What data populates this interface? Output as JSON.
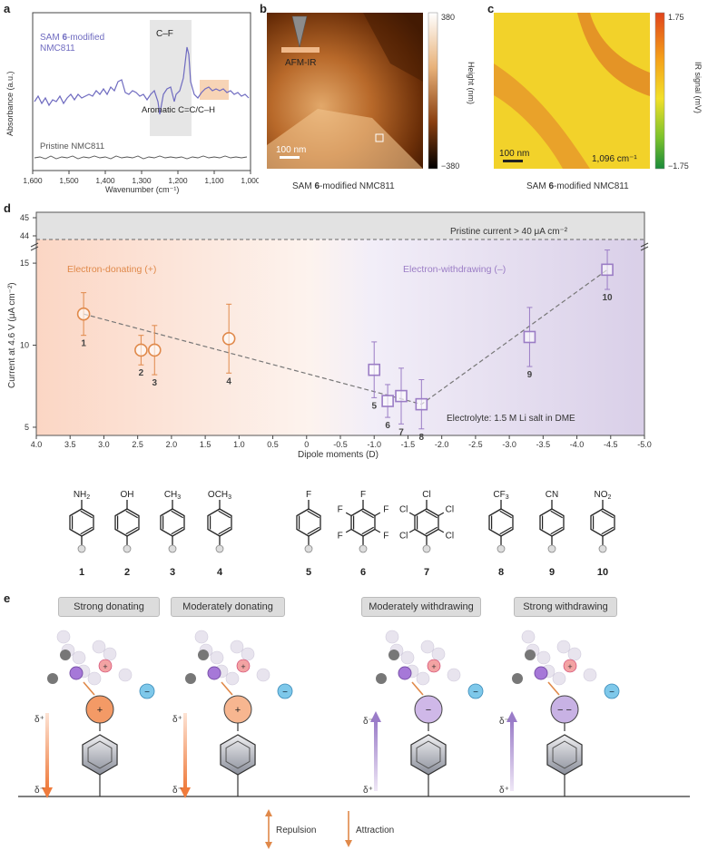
{
  "labels": {
    "a": "a",
    "b": "b",
    "c": "c",
    "d": "d",
    "e": "e"
  },
  "panel_a": {
    "ylabel": "Absorbance (a.u.)",
    "xlabel": "Wavenumber (cm⁻¹)",
    "xticks": [
      "1,600",
      "1,500",
      "1,400",
      "1,300",
      "1,200",
      "1,100",
      "1,000"
    ],
    "sam_label_1": "SAM ",
    "sam_label_bold": "6",
    "sam_label_2": "-modified",
    "sam_label_3": "NMC811",
    "cf_label": "C–F",
    "aromatic_label": "Aromatic C=C/C–H",
    "pristine_label": "Pristine NMC811",
    "colors": {
      "sam": "#6f6bc0",
      "pristine": "#555555",
      "cf_box": "#e4e4e4",
      "aro_box": "#f6d3b5"
    }
  },
  "panel_b": {
    "afm_label": "AFM-IR",
    "scale": "100 nm",
    "cbar_top": "380",
    "cbar_bottom": "−380",
    "cbar_label": "Height (nm)",
    "caption_1": "SAM ",
    "caption_bold": "6",
    "caption_2": "-modified NMC811"
  },
  "panel_c": {
    "scale": "100 nm",
    "wavenumber": "1,096 cm⁻¹",
    "cbar_top": "1.75",
    "cbar_bottom": "−1.75",
    "cbar_label": "IR signal (mV)",
    "caption_1": "SAM ",
    "caption_bold": "6",
    "caption_2": "-modified NMC811"
  },
  "chart_data": {
    "type": "scatter",
    "xlabel": "Dipole moments (D)",
    "ylabel": "Current at 4.6 V (μA cm⁻²)",
    "xlim": [
      4.0,
      -5.0
    ],
    "xticks": [
      "4.0",
      "3.5",
      "3.0",
      "2.5",
      "2.0",
      "1.5",
      "1.0",
      "0.5",
      "0",
      "-0.5",
      "-1.0",
      "-1.5",
      "-2.0",
      "-2.5",
      "-3.0",
      "-3.5",
      "-4.0",
      "-4.5",
      "-5.0"
    ],
    "yticks_lower": [
      "5",
      "10",
      "15"
    ],
    "yticks_upper": [
      "44",
      "45"
    ],
    "pristine_text": "Pristine current > 40 μA cm⁻²",
    "donating_text": "Electron-donating (+)",
    "withdrawing_text": "Electron-withdrawing (–)",
    "electrolyte_text": "Electrolyte: 1.5 M Li salt in DME",
    "points": [
      {
        "id": "1",
        "x": 3.3,
        "y": 11.9,
        "err": 1.3,
        "marker": "circle",
        "color": "#e0894a"
      },
      {
        "id": "2",
        "x": 2.45,
        "y": 9.7,
        "err": 0.9,
        "marker": "circle",
        "color": "#e0894a"
      },
      {
        "id": "3",
        "x": 2.25,
        "y": 9.7,
        "err": 1.5,
        "marker": "circle",
        "color": "#e0894a"
      },
      {
        "id": "4",
        "x": 1.15,
        "y": 10.4,
        "err": 2.1,
        "marker": "circle",
        "color": "#e0894a"
      },
      {
        "id": "5",
        "x": -1.0,
        "y": 8.5,
        "err": 1.7,
        "marker": "square",
        "color": "#9b7dc5"
      },
      {
        "id": "6",
        "x": -1.2,
        "y": 6.6,
        "err": 1.0,
        "marker": "square",
        "color": "#9b7dc5"
      },
      {
        "id": "7",
        "x": -1.4,
        "y": 6.9,
        "err": 1.7,
        "marker": "square",
        "color": "#9b7dc5"
      },
      {
        "id": "8",
        "x": -1.7,
        "y": 6.4,
        "err": 1.5,
        "marker": "square",
        "color": "#9b7dc5"
      },
      {
        "id": "9",
        "x": -3.3,
        "y": 10.5,
        "err": 1.8,
        "marker": "square",
        "color": "#9b7dc5"
      },
      {
        "id": "10",
        "x": -4.45,
        "y": 14.6,
        "err": 1.2,
        "marker": "square",
        "color": "#9b7dc5"
      }
    ],
    "trend": [
      [
        3.3,
        11.9
      ],
      [
        -1.7,
        6.4
      ],
      [
        -4.45,
        14.6
      ]
    ]
  },
  "molecules": [
    {
      "sub": "NH",
      "sub2": "2",
      "num": "1"
    },
    {
      "sub": "OH",
      "sub2": "",
      "num": "2"
    },
    {
      "sub": "CH",
      "sub2": "3",
      "num": "3"
    },
    {
      "sub": "OCH",
      "sub2": "3",
      "num": "4"
    },
    {
      "sub": "F",
      "sub2": "",
      "num": "5"
    },
    {
      "sub": "F",
      "sub2": "",
      "num": "6"
    },
    {
      "sub": "Cl",
      "sub2": "",
      "num": "7"
    },
    {
      "sub": "CF",
      "sub2": "3",
      "num": "8"
    },
    {
      "sub": "CN",
      "sub2": "",
      "num": "9"
    },
    {
      "sub": "NO",
      "sub2": "2",
      "num": "10"
    }
  ],
  "ring_subs": {
    "F": "F",
    "Cl": "Cl"
  },
  "panel_e": {
    "pills": [
      "Strong donating",
      "Moderately donating",
      "Moderately withdrawing",
      "Strong withdrawing"
    ],
    "delta_plus": "δ⁺",
    "delta_minus": "δ⁻",
    "plus": "+",
    "minus": "−",
    "double_minus": "− −",
    "repulsion": "Repulsion",
    "attraction": "Attraction"
  }
}
